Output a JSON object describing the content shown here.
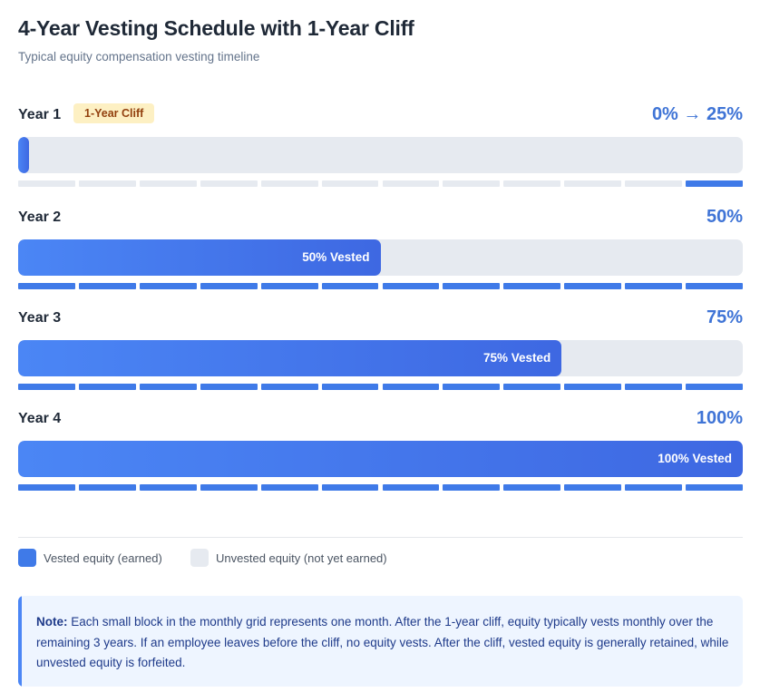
{
  "title": "4-Year Vesting Schedule with 1-Year Cliff",
  "subtitle": "Typical equity compensation vesting timeline",
  "colors": {
    "vested": "#3f7ae8",
    "unvested": "#e6eaf0",
    "accent_text": "#3f74d6",
    "badge_bg": "#fdf0c3"
  },
  "chart_data": {
    "type": "bar",
    "orientation": "horizontal",
    "categories": [
      "Year 1",
      "Year 2",
      "Year 3",
      "Year 4"
    ],
    "values": [
      1.5,
      50,
      75,
      100
    ],
    "value_labels": [
      "0% → 25%",
      "50%",
      "75%",
      "100%"
    ],
    "bar_labels": [
      "",
      "50% Vested",
      "75% Vested",
      "100% Vested"
    ],
    "xlim": [
      0,
      100
    ],
    "months_per_year": 12,
    "monthly_vested_flags": [
      [
        0,
        0,
        0,
        0,
        0,
        0,
        0,
        0,
        0,
        0,
        0,
        1
      ],
      [
        1,
        1,
        1,
        1,
        1,
        1,
        1,
        1,
        1,
        1,
        1,
        1
      ],
      [
        1,
        1,
        1,
        1,
        1,
        1,
        1,
        1,
        1,
        1,
        1,
        1
      ],
      [
        1,
        1,
        1,
        1,
        1,
        1,
        1,
        1,
        1,
        1,
        1,
        1
      ]
    ],
    "annotations": [
      "1-Year Cliff"
    ]
  },
  "years": [
    {
      "label": "Year 1",
      "badge": "1-Year Cliff",
      "pct": "0% → 25%",
      "bar_label": ""
    },
    {
      "label": "Year 2",
      "badge": "",
      "pct": "50%",
      "bar_label": "50% Vested"
    },
    {
      "label": "Year 3",
      "badge": "",
      "pct": "75%",
      "bar_label": "75% Vested"
    },
    {
      "label": "Year 4",
      "badge": "",
      "pct": "100%",
      "bar_label": "100% Vested"
    }
  ],
  "legend": {
    "vested": "Vested equity (earned)",
    "unvested": "Unvested equity (not yet earned)"
  },
  "note": {
    "lead": "Note:",
    "text": " Each small block in the monthly grid represents one month. After the 1-year cliff, equity typically vests monthly over the remaining 3 years. If an employee leaves before the cliff, no equity vests. After the cliff, vested equity is generally retained, while unvested equity is forfeited."
  }
}
